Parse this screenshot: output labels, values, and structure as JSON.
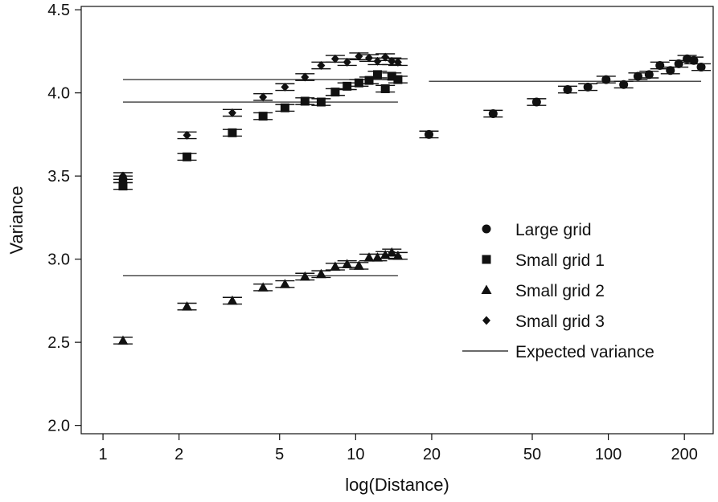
{
  "chart_data": {
    "type": "scatter",
    "title": "",
    "xlabel": "log(Distance)",
    "ylabel": "Variance",
    "xscale": "log",
    "xlim": [
      0.82,
      260
    ],
    "ylim": [
      1.95,
      4.52
    ],
    "xticks": [
      {
        "value": 1,
        "label": "1"
      },
      {
        "value": 2,
        "label": "2"
      },
      {
        "value": 5,
        "label": "5"
      },
      {
        "value": 10,
        "label": "10"
      },
      {
        "value": 20,
        "label": "20"
      },
      {
        "value": 50,
        "label": "50"
      },
      {
        "value": 100,
        "label": "100"
      },
      {
        "value": 200,
        "label": "200"
      }
    ],
    "yticks": [
      {
        "value": 2.0,
        "label": "2.0"
      },
      {
        "value": 2.5,
        "label": "2.5"
      },
      {
        "value": 3.0,
        "label": "3.0"
      },
      {
        "value": 3.5,
        "label": "3.5"
      },
      {
        "value": 4.0,
        "label": "4.0"
      },
      {
        "value": 4.5,
        "label": "4.5"
      }
    ],
    "grid": false,
    "legend_position": "right-center",
    "series": [
      {
        "name": "Large grid",
        "marker": "circle",
        "points": [
          {
            "x": 1.2,
            "y": 3.48,
            "err": 0.02
          },
          {
            "x": 19.5,
            "y": 3.75,
            "err": 0.02
          },
          {
            "x": 35,
            "y": 3.875,
            "err": 0.02
          },
          {
            "x": 52,
            "y": 3.945,
            "err": 0.02
          },
          {
            "x": 69,
            "y": 4.02,
            "err": 0.02
          },
          {
            "x": 83,
            "y": 4.035,
            "err": 0.02
          },
          {
            "x": 98,
            "y": 4.08,
            "err": 0.02
          },
          {
            "x": 115,
            "y": 4.05,
            "err": 0.02
          },
          {
            "x": 131,
            "y": 4.1,
            "err": 0.02
          },
          {
            "x": 145,
            "y": 4.11,
            "err": 0.02
          },
          {
            "x": 160,
            "y": 4.165,
            "err": 0.02
          },
          {
            "x": 176,
            "y": 4.135,
            "err": 0.02
          },
          {
            "x": 190,
            "y": 4.175,
            "err": 0.02
          },
          {
            "x": 205,
            "y": 4.205,
            "err": 0.02
          },
          {
            "x": 218,
            "y": 4.195,
            "err": 0.02
          },
          {
            "x": 233,
            "y": 4.155,
            "err": 0.02
          }
        ]
      },
      {
        "name": "Small grid 1",
        "marker": "square",
        "points": [
          {
            "x": 1.2,
            "y": 3.44,
            "err": 0.02
          },
          {
            "x": 2.15,
            "y": 3.615,
            "err": 0.02
          },
          {
            "x": 3.25,
            "y": 3.76,
            "err": 0.02
          },
          {
            "x": 4.3,
            "y": 3.86,
            "err": 0.02
          },
          {
            "x": 5.25,
            "y": 3.91,
            "err": 0.02
          },
          {
            "x": 6.3,
            "y": 3.95,
            "err": 0.02
          },
          {
            "x": 7.3,
            "y": 3.945,
            "err": 0.02
          },
          {
            "x": 8.3,
            "y": 4.005,
            "err": 0.02
          },
          {
            "x": 9.25,
            "y": 4.04,
            "err": 0.02
          },
          {
            "x": 10.3,
            "y": 4.06,
            "err": 0.02
          },
          {
            "x": 11.3,
            "y": 4.075,
            "err": 0.02
          },
          {
            "x": 12.2,
            "y": 4.11,
            "err": 0.02
          },
          {
            "x": 13.1,
            "y": 4.025,
            "err": 0.02
          },
          {
            "x": 13.9,
            "y": 4.1,
            "err": 0.02
          },
          {
            "x": 14.7,
            "y": 4.08,
            "err": 0.02
          }
        ]
      },
      {
        "name": "Small grid 2",
        "marker": "triangle",
        "points": [
          {
            "x": 1.2,
            "y": 2.51,
            "err": 0.02
          },
          {
            "x": 2.15,
            "y": 2.715,
            "err": 0.02
          },
          {
            "x": 3.25,
            "y": 2.75,
            "err": 0.02
          },
          {
            "x": 4.3,
            "y": 2.83,
            "err": 0.02
          },
          {
            "x": 5.25,
            "y": 2.85,
            "err": 0.02
          },
          {
            "x": 6.3,
            "y": 2.895,
            "err": 0.02
          },
          {
            "x": 7.3,
            "y": 2.91,
            "err": 0.02
          },
          {
            "x": 8.3,
            "y": 2.955,
            "err": 0.02
          },
          {
            "x": 9.25,
            "y": 2.97,
            "err": 0.02
          },
          {
            "x": 10.3,
            "y": 2.96,
            "err": 0.02
          },
          {
            "x": 11.3,
            "y": 3.01,
            "err": 0.02
          },
          {
            "x": 12.2,
            "y": 3.01,
            "err": 0.02
          },
          {
            "x": 13.1,
            "y": 3.025,
            "err": 0.02
          },
          {
            "x": 13.9,
            "y": 3.04,
            "err": 0.02
          },
          {
            "x": 14.7,
            "y": 3.02,
            "err": 0.02
          }
        ]
      },
      {
        "name": "Small grid 3",
        "marker": "diamond",
        "points": [
          {
            "x": 1.2,
            "y": 3.5,
            "err": 0.02
          },
          {
            "x": 2.15,
            "y": 3.745,
            "err": 0.02
          },
          {
            "x": 3.25,
            "y": 3.88,
            "err": 0.02
          },
          {
            "x": 4.3,
            "y": 3.975,
            "err": 0.02
          },
          {
            "x": 5.25,
            "y": 4.035,
            "err": 0.02
          },
          {
            "x": 6.3,
            "y": 4.095,
            "err": 0.02
          },
          {
            "x": 7.3,
            "y": 4.165,
            "err": 0.02
          },
          {
            "x": 8.3,
            "y": 4.205,
            "err": 0.02
          },
          {
            "x": 9.25,
            "y": 4.185,
            "err": 0.02
          },
          {
            "x": 10.3,
            "y": 4.22,
            "err": 0.02
          },
          {
            "x": 11.3,
            "y": 4.21,
            "err": 0.02
          },
          {
            "x": 12.2,
            "y": 4.19,
            "err": 0.02
          },
          {
            "x": 13.1,
            "y": 4.215,
            "err": 0.02
          },
          {
            "x": 13.9,
            "y": 4.19,
            "err": 0.02
          },
          {
            "x": 14.7,
            "y": 4.185,
            "err": 0.02
          }
        ]
      }
    ],
    "reference_lines": [
      {
        "name": "Expected variance",
        "y": 4.08,
        "x_start": 1.2,
        "x_end": 14.7
      },
      {
        "name": "Expected variance",
        "y": 3.945,
        "x_start": 1.2,
        "x_end": 14.7
      },
      {
        "name": "Expected variance",
        "y": 2.9,
        "x_start": 1.2,
        "x_end": 14.7
      },
      {
        "name": "Expected variance",
        "y": 4.07,
        "x_start": 19.5,
        "x_end": 233
      }
    ],
    "legend": [
      {
        "label": "Large grid",
        "marker": "circle"
      },
      {
        "label": "Small grid 1",
        "marker": "square"
      },
      {
        "label": "Small grid 2",
        "marker": "triangle"
      },
      {
        "label": "Small grid 3",
        "marker": "diamond"
      },
      {
        "label": "Expected variance",
        "marker": "line"
      }
    ],
    "colors": {
      "ink": "#111111",
      "background": "#ffffff"
    }
  }
}
